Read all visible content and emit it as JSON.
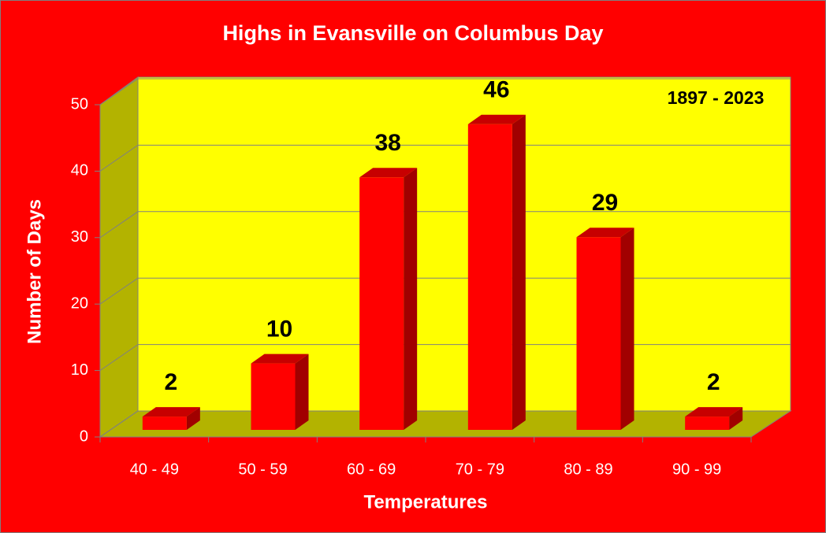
{
  "chart_data": {
    "type": "bar3d",
    "title": "Highs in Evansville on Columbus Day",
    "annotation": "1897 - 2023",
    "x_label": "Temperatures",
    "y_label": "Number of Days",
    "categories": [
      "40 - 49",
      "50 - 59",
      "60 - 69",
      "70 - 79",
      "80 - 89",
      "90 - 99"
    ],
    "values": [
      2,
      10,
      38,
      46,
      29,
      2
    ],
    "color": "#ff0000",
    "ylim": [
      0,
      50
    ],
    "yticks": [
      0,
      10,
      20,
      30,
      40,
      50
    ],
    "grid": true
  }
}
